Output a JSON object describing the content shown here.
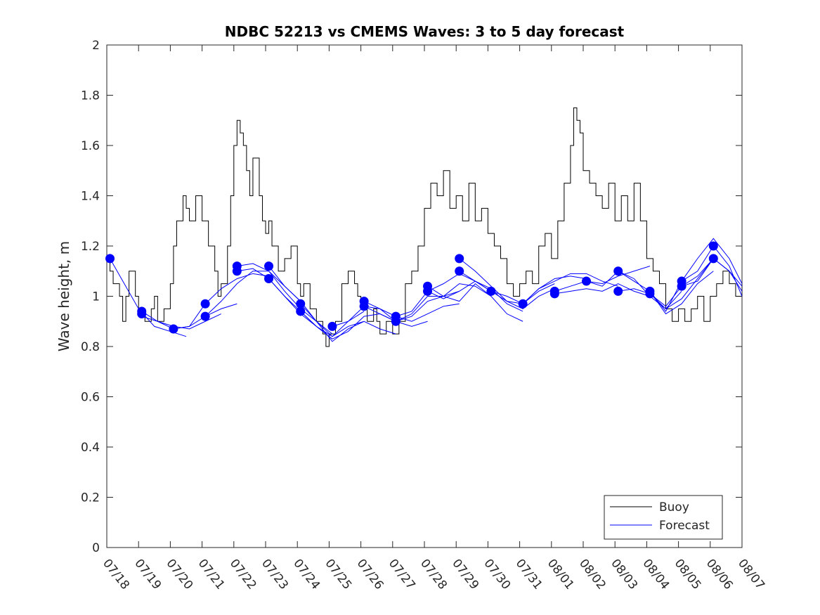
{
  "chart_data": {
    "type": "line",
    "title": "NDBC 52213 vs CMEMS Waves: 3 to 5 day forecast",
    "xlabel": "",
    "ylabel": "Wave height, m",
    "ylim": [
      0,
      2
    ],
    "yticks": [
      0,
      0.2,
      0.4,
      0.6,
      0.8,
      1,
      1.2,
      1.4,
      1.6,
      1.8,
      2
    ],
    "ytick_labels": [
      "0",
      "0.2",
      "0.4",
      "0.6",
      "0.8",
      "1",
      "1.2",
      "1.4",
      "1.6",
      "1.8",
      "2"
    ],
    "xlim": [
      0,
      20
    ],
    "xtick_labels": [
      "07/18",
      "07/19",
      "07/20",
      "07/21",
      "07/22",
      "07/23",
      "07/24",
      "07/25",
      "07/26",
      "07/27",
      "07/28",
      "07/29",
      "07/30",
      "07/31",
      "08/01",
      "08/02",
      "08/03",
      "08/04",
      "08/05",
      "08/06",
      "08/07"
    ],
    "grid": false,
    "legend_position": "bottom-right",
    "legend": [
      {
        "label": "Buoy",
        "color": "#000000"
      },
      {
        "label": "Forecast",
        "color": "#0000ff"
      }
    ],
    "buoy": {
      "name": "Buoy",
      "color": "#000000",
      "x": [
        0,
        0.1,
        0.2,
        0.4,
        0.5,
        0.6,
        0.7,
        0.9,
        1.0,
        1.2,
        1.4,
        1.5,
        1.6,
        1.8,
        2.0,
        2.1,
        2.2,
        2.4,
        2.5,
        2.6,
        2.8,
        3.0,
        3.2,
        3.4,
        3.5,
        3.6,
        3.8,
        3.9,
        4.0,
        4.1,
        4.2,
        4.3,
        4.4,
        4.5,
        4.6,
        4.8,
        4.9,
        5.0,
        5.1,
        5.2,
        5.4,
        5.6,
        5.8,
        6.0,
        6.1,
        6.2,
        6.4,
        6.6,
        6.8,
        6.9,
        7.0,
        7.2,
        7.4,
        7.6,
        7.8,
        7.9,
        8.0,
        8.2,
        8.4,
        8.5,
        8.6,
        8.8,
        9.0,
        9.2,
        9.4,
        9.6,
        9.8,
        10.0,
        10.2,
        10.4,
        10.6,
        10.8,
        11.0,
        11.2,
        11.4,
        11.6,
        11.8,
        12.0,
        12.2,
        12.4,
        12.6,
        12.8,
        13.0,
        13.2,
        13.4,
        13.6,
        13.8,
        14.0,
        14.2,
        14.4,
        14.6,
        14.7,
        14.8,
        14.9,
        15.0,
        15.2,
        15.4,
        15.6,
        15.8,
        16.0,
        16.2,
        16.4,
        16.6,
        16.8,
        17.0,
        17.2,
        17.4,
        17.6,
        17.8,
        18.0,
        18.2,
        18.4,
        18.6,
        18.8,
        19.0,
        19.2,
        19.4,
        19.6,
        19.8,
        20.0
      ],
      "y": [
        1.15,
        1.1,
        1.05,
        1.0,
        0.9,
        1.0,
        1.1,
        1.0,
        0.95,
        0.9,
        0.95,
        1.0,
        0.9,
        0.95,
        1.05,
        1.2,
        1.3,
        1.4,
        1.35,
        1.3,
        1.4,
        1.3,
        1.2,
        1.1,
        1.0,
        1.05,
        1.2,
        1.4,
        1.6,
        1.7,
        1.65,
        1.6,
        1.5,
        1.4,
        1.55,
        1.4,
        1.3,
        1.25,
        1.3,
        1.2,
        1.1,
        1.15,
        1.2,
        1.05,
        1.0,
        1.05,
        0.95,
        0.9,
        0.85,
        0.8,
        0.85,
        0.9,
        1.05,
        1.1,
        1.05,
        1.0,
        0.95,
        0.9,
        0.95,
        0.9,
        0.85,
        0.9,
        0.85,
        0.9,
        1.05,
        1.1,
        1.2,
        1.35,
        1.45,
        1.4,
        1.5,
        1.35,
        1.4,
        1.3,
        1.45,
        1.3,
        1.35,
        1.25,
        1.2,
        1.15,
        1.05,
        1.0,
        1.05,
        1.1,
        1.05,
        1.2,
        1.25,
        1.15,
        1.3,
        1.45,
        1.6,
        1.75,
        1.7,
        1.65,
        1.5,
        1.45,
        1.4,
        1.35,
        1.45,
        1.3,
        1.4,
        1.3,
        1.45,
        1.3,
        1.15,
        1.1,
        1.05,
        0.95,
        0.9,
        0.95,
        0.9,
        0.95,
        1.0,
        0.9,
        1.0,
        1.05,
        1.1,
        1.05,
        1.0,
        1.05
      ]
    },
    "forecast_runs": [
      {
        "name": "Forecast",
        "x": [
          0.1,
          1.0,
          1.5,
          2.0,
          2.5
        ],
        "y": [
          1.15,
          0.95,
          0.88,
          0.86,
          0.84
        ]
      },
      {
        "name": "Forecast",
        "x": [
          1.1,
          1.6,
          2.1,
          2.6,
          3.1,
          3.6
        ],
        "y": [
          0.92,
          0.9,
          0.88,
          0.87,
          0.9,
          0.93
        ]
      },
      {
        "name": "Forecast",
        "x": [
          1.1,
          1.6,
          2.1,
          2.6,
          3.1,
          3.6,
          4.1
        ],
        "y": [
          0.94,
          0.9,
          0.87,
          0.88,
          0.92,
          0.95,
          0.97
        ]
      },
      {
        "name": "Forecast",
        "x": [
          2.1,
          2.6,
          3.1,
          3.6,
          4.1,
          4.6,
          5.1
        ],
        "y": [
          0.87,
          0.88,
          0.97,
          1.03,
          1.07,
          1.09,
          1.08
        ]
      },
      {
        "name": "Forecast",
        "x": [
          3.1,
          3.6,
          4.1,
          4.6,
          5.1,
          5.6,
          6.1
        ],
        "y": [
          0.92,
          0.98,
          1.05,
          1.1,
          1.1,
          1.04,
          0.98
        ]
      },
      {
        "name": "Forecast",
        "x": [
          4.1,
          4.6,
          5.1,
          5.6,
          6.1,
          6.6,
          7.1
        ],
        "y": [
          1.12,
          1.13,
          1.1,
          1.02,
          0.95,
          0.9,
          0.85
        ]
      },
      {
        "name": "Forecast",
        "x": [
          4.1,
          4.6,
          5.1,
          5.6,
          6.1,
          6.6,
          7.1
        ],
        "y": [
          1.1,
          1.11,
          1.07,
          1.0,
          0.93,
          0.88,
          0.83
        ]
      },
      {
        "name": "Forecast",
        "x": [
          5.1,
          5.6,
          6.1,
          6.6,
          7.1,
          7.6,
          8.1
        ],
        "y": [
          1.12,
          1.04,
          0.98,
          0.9,
          0.82,
          0.87,
          0.9
        ]
      },
      {
        "name": "Forecast",
        "x": [
          5.1,
          5.6,
          6.1,
          6.6,
          7.1,
          7.6,
          8.1
        ],
        "y": [
          1.07,
          1.0,
          0.94,
          0.88,
          0.84,
          0.9,
          0.94
        ]
      },
      {
        "name": "Forecast",
        "x": [
          6.1,
          6.6,
          7.1,
          7.6,
          8.1,
          8.6,
          9.1
        ],
        "y": [
          0.97,
          0.9,
          0.84,
          0.88,
          0.9,
          0.87,
          0.85
        ]
      },
      {
        "name": "Forecast",
        "x": [
          6.1,
          6.6,
          7.1,
          7.6,
          8.1,
          8.6,
          9.1
        ],
        "y": [
          0.94,
          0.88,
          0.83,
          0.86,
          0.92,
          0.93,
          0.9
        ]
      },
      {
        "name": "Forecast",
        "x": [
          7.1,
          7.6,
          8.1,
          8.6,
          9.1,
          9.6,
          10.1
        ],
        "y": [
          0.88,
          0.9,
          0.96,
          0.95,
          0.9,
          0.88,
          0.9
        ]
      },
      {
        "name": "Forecast",
        "x": [
          8.1,
          8.6,
          9.1,
          9.6,
          10.1,
          10.6,
          11.1
        ],
        "y": [
          0.98,
          0.95,
          0.92,
          0.9,
          0.93,
          0.96,
          0.97
        ]
      },
      {
        "name": "Forecast",
        "x": [
          8.1,
          8.6,
          9.1,
          9.6,
          10.1,
          10.6,
          11.1
        ],
        "y": [
          0.96,
          0.93,
          0.9,
          0.92,
          0.98,
          1.0,
          1.02
        ]
      },
      {
        "name": "Forecast",
        "x": [
          9.1,
          9.6,
          10.1,
          10.6,
          11.1,
          11.6,
          12.1
        ],
        "y": [
          0.92,
          0.94,
          1.02,
          1.05,
          1.09,
          1.06,
          1.02
        ]
      },
      {
        "name": "Forecast",
        "x": [
          9.1,
          9.6,
          10.1,
          10.6,
          11.1,
          11.6,
          12.1
        ],
        "y": [
          0.9,
          0.93,
          1.0,
          1.0,
          1.05,
          1.04,
          1.0
        ]
      },
      {
        "name": "Forecast",
        "x": [
          10.1,
          10.6,
          11.1,
          11.6,
          12.1,
          12.6,
          13.1
        ],
        "y": [
          1.04,
          1.0,
          0.98,
          1.05,
          1.0,
          0.93,
          0.9
        ]
      },
      {
        "name": "Forecast",
        "x": [
          10.1,
          10.6,
          11.1,
          11.6,
          12.1,
          12.6,
          13.1
        ],
        "y": [
          1.02,
          0.99,
          1.02,
          1.06,
          1.03,
          0.97,
          0.94
        ]
      },
      {
        "name": "Forecast",
        "x": [
          11.1,
          11.6,
          12.1,
          12.6,
          13.1,
          13.6,
          14.1
        ],
        "y": [
          1.15,
          1.1,
          1.04,
          0.98,
          0.95,
          1.0,
          1.03
        ]
      },
      {
        "name": "Forecast",
        "x": [
          11.1,
          11.6,
          12.1,
          12.6,
          13.1,
          13.6,
          14.1
        ],
        "y": [
          1.1,
          1.06,
          1.02,
          1.0,
          0.97,
          1.02,
          1.05
        ]
      },
      {
        "name": "Forecast",
        "x": [
          12.1,
          12.6,
          13.1,
          13.6,
          14.1,
          14.6,
          15.1
        ],
        "y": [
          1.02,
          0.98,
          0.97,
          1.03,
          1.07,
          1.08,
          1.07
        ]
      },
      {
        "name": "Forecast",
        "x": [
          13.1,
          13.6,
          14.1,
          14.6,
          15.1,
          15.6,
          16.1
        ],
        "y": [
          0.97,
          1.03,
          1.06,
          1.09,
          1.09,
          1.06,
          1.04
        ]
      },
      {
        "name": "Forecast",
        "x": [
          14.1,
          14.6,
          15.1,
          15.6,
          16.1,
          16.6,
          17.1
        ],
        "y": [
          1.02,
          1.04,
          1.06,
          1.05,
          1.08,
          1.1,
          1.12
        ]
      },
      {
        "name": "Forecast",
        "x": [
          14.1,
          14.6,
          15.1,
          15.6,
          16.1,
          16.6,
          17.1
        ],
        "y": [
          1.01,
          1.02,
          1.03,
          1.02,
          1.05,
          1.02,
          1.0
        ]
      },
      {
        "name": "Forecast",
        "x": [
          15.1,
          15.6,
          16.1,
          16.6,
          17.1,
          17.6,
          18.1
        ],
        "y": [
          1.06,
          1.04,
          1.1,
          1.07,
          1.0,
          0.95,
          1.02
        ]
      },
      {
        "name": "Forecast",
        "x": [
          16.1,
          16.6,
          17.1,
          17.6,
          18.1,
          18.6,
          19.1
        ],
        "y": [
          1.1,
          1.06,
          1.02,
          0.93,
          0.97,
          1.05,
          1.1
        ]
      },
      {
        "name": "Forecast",
        "x": [
          16.1,
          16.6,
          17.1,
          17.6,
          18.1,
          18.6,
          19.1
        ],
        "y": [
          1.02,
          1.03,
          1.01,
          0.95,
          0.99,
          1.07,
          1.15
        ]
      },
      {
        "name": "Forecast",
        "x": [
          17.1,
          17.6,
          18.1,
          18.6,
          19.1,
          19.6,
          20.0
        ],
        "y": [
          1.02,
          0.94,
          1.06,
          1.15,
          1.23,
          1.15,
          1.05
        ]
      },
      {
        "name": "Forecast",
        "x": [
          17.1,
          17.6,
          18.1,
          18.6,
          19.1,
          19.6,
          20.0
        ],
        "y": [
          1.01,
          0.96,
          1.04,
          1.08,
          1.15,
          1.1,
          1.02
        ]
      },
      {
        "name": "Forecast",
        "x": [
          18.1,
          18.6,
          19.1,
          19.6,
          20.0
        ],
        "y": [
          1.06,
          1.1,
          1.2,
          1.12,
          1.0
        ]
      },
      {
        "name": "Forecast",
        "x": [
          18.1,
          18.6,
          19.1,
          19.6,
          20.0
        ],
        "y": [
          1.04,
          1.06,
          1.15,
          1.1,
          1.04
        ]
      }
    ],
    "forecast_start_markers": {
      "name": "Forecast",
      "color": "#0000ff",
      "x": [
        0.1,
        1.1,
        1.1,
        2.1,
        3.1,
        3.1,
        4.1,
        4.1,
        5.1,
        5.1,
        6.1,
        6.1,
        7.1,
        8.1,
        8.1,
        9.1,
        9.1,
        10.1,
        10.1,
        11.1,
        11.1,
        12.1,
        13.1,
        14.1,
        14.1,
        15.1,
        16.1,
        16.1,
        17.1,
        17.1,
        18.1,
        18.1,
        19.1,
        19.1
      ],
      "y": [
        1.15,
        0.94,
        0.93,
        0.87,
        0.97,
        0.92,
        1.12,
        1.1,
        1.12,
        1.07,
        0.97,
        0.94,
        0.88,
        0.98,
        0.96,
        0.92,
        0.9,
        1.04,
        1.02,
        1.15,
        1.1,
        1.02,
        0.97,
        1.02,
        1.01,
        1.06,
        1.1,
        1.02,
        1.02,
        1.01,
        1.06,
        1.04,
        1.2,
        1.15
      ]
    }
  }
}
